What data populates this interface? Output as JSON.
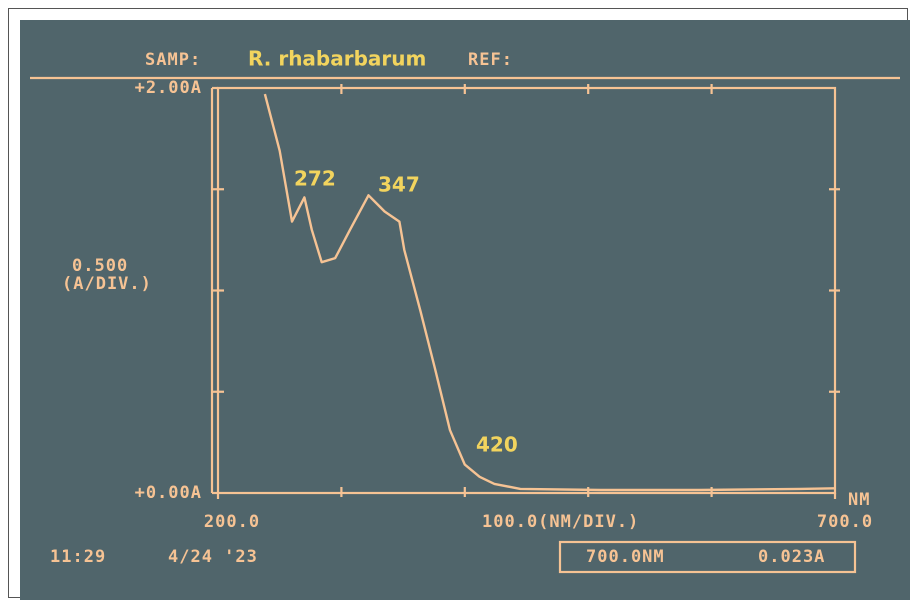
{
  "chart_data": {
    "type": "line",
    "header": {
      "sample_label": "SAMP:",
      "sample": "R. rhabarbarum",
      "reference_label": "REF:"
    },
    "x": [
      238,
      250,
      260,
      270,
      276,
      284,
      295,
      307,
      322,
      335,
      347,
      351,
      364,
      376,
      388,
      400,
      412,
      424,
      445,
      510,
      590,
      672,
      700
    ],
    "values": [
      1.97,
      1.69,
      1.34,
      1.46,
      1.3,
      1.14,
      1.16,
      1.3,
      1.47,
      1.39,
      1.34,
      1.2,
      0.9,
      0.61,
      0.31,
      0.14,
      0.08,
      0.045,
      0.02,
      0.015,
      0.015,
      0.02,
      0.023
    ],
    "color": "#f6c394",
    "xlim": [
      200,
      700
    ],
    "ylim": [
      0,
      2
    ],
    "xticks": [
      {
        "value": 200,
        "label": "200.0"
      },
      {
        "value": 700,
        "label": "700.0"
      }
    ],
    "yticks": [
      {
        "value": 0,
        "label": "+0.00A"
      },
      {
        "value": 2,
        "label": "+2.00A"
      }
    ],
    "x_division": {
      "value": 100,
      "label": "100.0(NM/DIV.)"
    },
    "y_division": {
      "value": 0.5,
      "label": "0.500"
    },
    "y_division_unit": "(A/DIV.)",
    "x_unit": "NM",
    "annotations": [
      "272",
      "347",
      "420"
    ],
    "footer": {
      "time": "11:29",
      "date": "4/24 '23",
      "readout_wavelength": "700.0NM",
      "readout_absorbance": "0.023A"
    }
  }
}
